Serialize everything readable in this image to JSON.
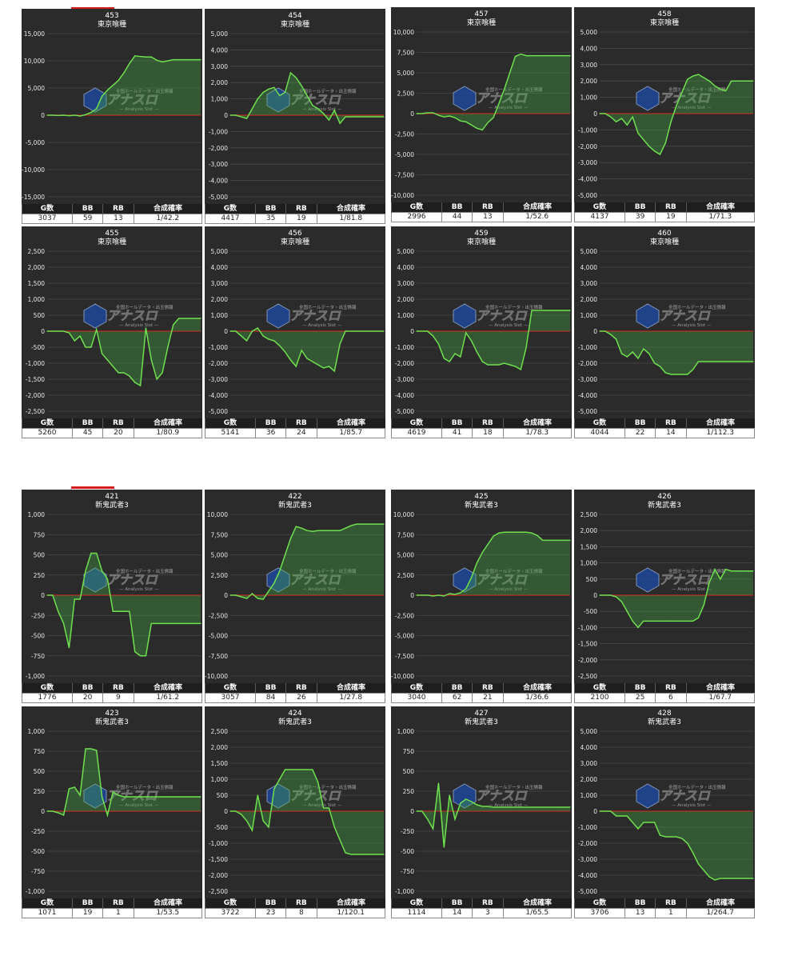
{
  "top_marks": [
    {
      "id": "mark-top"
    },
    {
      "id": "mark-mid"
    }
  ],
  "stat_headers": [
    "G数",
    "BB",
    "RB",
    "合成確率"
  ],
  "watermark": {
    "main": "アナスロ",
    "tagline": "— Analysis Slot —",
    "small": "全国ホールデータ・出玉情報"
  },
  "chart_data": [
    {
      "type": "area",
      "title": "453",
      "subtitle": "東京喰種",
      "yticks": [
        -15000,
        -10000,
        -5000,
        0,
        5000,
        10000,
        15000
      ],
      "ylim": [
        -15000,
        15000
      ],
      "values": [
        0,
        0,
        -50,
        0,
        -100,
        0,
        -150,
        100,
        500,
        1200,
        3500,
        4600,
        5500,
        6400,
        7800,
        9500,
        10900,
        10800,
        10700,
        10700,
        10100,
        9800,
        10000,
        10200,
        10200,
        10200,
        10200,
        10200,
        10200
      ],
      "stats": {
        "g": "3037",
        "bb": "59",
        "rb": "13",
        "rate": "1/42.2"
      }
    },
    {
      "type": "area",
      "title": "454",
      "subtitle": "東京喰種",
      "yticks": [
        -5000,
        -4000,
        -3000,
        -2000,
        -1000,
        0,
        1000,
        2000,
        3000,
        4000,
        5000
      ],
      "ylim": [
        -5000,
        5000
      ],
      "values": [
        0,
        0,
        -100,
        -200,
        400,
        1000,
        1400,
        1600,
        1700,
        1200,
        1400,
        2600,
        2300,
        1800,
        1200,
        600,
        400,
        100,
        -300,
        300,
        -500,
        -100,
        -100,
        -100,
        -100,
        -100,
        -100,
        -100,
        -100
      ],
      "stats": {
        "g": "4417",
        "bb": "35",
        "rb": "19",
        "rate": "1/81.8"
      }
    },
    {
      "type": "area",
      "title": "457",
      "subtitle": "東京喰種",
      "yticks": [
        -10000,
        -7500,
        -5000,
        -2500,
        0,
        2500,
        5000,
        7500,
        10000
      ],
      "ylim": [
        -10000,
        10000
      ],
      "values": [
        0,
        0,
        100,
        100,
        -200,
        -400,
        -300,
        -500,
        -900,
        -1000,
        -1400,
        -1800,
        -2000,
        -1100,
        -500,
        1200,
        3000,
        5000,
        7000,
        7300,
        7100,
        7100,
        7100,
        7100,
        7100,
        7100,
        7100,
        7100,
        7100
      ],
      "stats": {
        "g": "2996",
        "bb": "44",
        "rb": "13",
        "rate": "1/52.6"
      }
    },
    {
      "type": "area",
      "title": "458",
      "subtitle": "東京喰種",
      "yticks": [
        -5000,
        -4000,
        -3000,
        -2000,
        -1000,
        0,
        1000,
        2000,
        3000,
        4000,
        5000
      ],
      "ylim": [
        -5000,
        5000
      ],
      "values": [
        0,
        0,
        -200,
        -500,
        -300,
        -700,
        -200,
        -1200,
        -1600,
        -2000,
        -2300,
        -2500,
        -1800,
        -500,
        500,
        1300,
        2100,
        2300,
        2400,
        2200,
        2000,
        1700,
        1500,
        1400,
        2000,
        2000,
        2000,
        2000,
        2000
      ],
      "stats": {
        "g": "4137",
        "bb": "39",
        "rb": "19",
        "rate": "1/71.3"
      }
    },
    {
      "type": "area",
      "title": "455",
      "subtitle": "東京喰種",
      "yticks": [
        -2500,
        -2000,
        -1500,
        -1000,
        -500,
        0,
        500,
        1000,
        1500,
        2000,
        2500
      ],
      "ylim": [
        -2500,
        2500
      ],
      "values": [
        0,
        0,
        0,
        0,
        -50,
        -300,
        -150,
        -500,
        -500,
        50,
        -700,
        -900,
        -1100,
        -1300,
        -1300,
        -1400,
        -1600,
        -1700,
        100,
        -900,
        -1500,
        -1300,
        -500,
        200,
        400,
        400,
        400,
        400,
        400
      ],
      "stats": {
        "g": "5260",
        "bb": "45",
        "rb": "20",
        "rate": "1/80.9"
      }
    },
    {
      "type": "area",
      "title": "456",
      "subtitle": "東京喰種",
      "yticks": [
        -5000,
        -4000,
        -3000,
        -2000,
        -1000,
        0,
        1000,
        2000,
        3000,
        4000,
        5000
      ],
      "ylim": [
        -5000,
        5000
      ],
      "values": [
        0,
        0,
        -300,
        -600,
        0,
        200,
        -300,
        -500,
        -600,
        -900,
        -1300,
        -1800,
        -2200,
        -1200,
        -1700,
        -1900,
        -2100,
        -2300,
        -2200,
        -2500,
        -800,
        0,
        0,
        0,
        0,
        0,
        0,
        0,
        0
      ],
      "stats": {
        "g": "5141",
        "bb": "36",
        "rb": "24",
        "rate": "1/85.7"
      }
    },
    {
      "type": "area",
      "title": "459",
      "subtitle": "東京喰種",
      "yticks": [
        -5000,
        -4000,
        -3000,
        -2000,
        -1000,
        0,
        1000,
        2000,
        3000,
        4000,
        5000
      ],
      "ylim": [
        -5000,
        5000
      ],
      "values": [
        0,
        0,
        0,
        -300,
        -800,
        -1700,
        -1900,
        -1400,
        -1600,
        -100,
        -600,
        -1300,
        -1900,
        -2100,
        -2100,
        -2100,
        -2000,
        -2100,
        -2200,
        -2400,
        -1000,
        1300,
        1300,
        1300,
        1300,
        1300,
        1300,
        1300,
        1300
      ],
      "stats": {
        "g": "4619",
        "bb": "41",
        "rb": "18",
        "rate": "1/78.3"
      }
    },
    {
      "type": "area",
      "title": "460",
      "subtitle": "東京喰種",
      "yticks": [
        -5000,
        -4000,
        -3000,
        -2000,
        -1000,
        0,
        1000,
        2000,
        3000,
        4000,
        5000
      ],
      "ylim": [
        -5000,
        5000
      ],
      "values": [
        0,
        0,
        -200,
        -500,
        -1400,
        -1600,
        -1300,
        -1700,
        -1100,
        -1400,
        -2000,
        -2200,
        -2600,
        -2700,
        -2700,
        -2700,
        -2700,
        -2400,
        -1900,
        -1900,
        -1900,
        -1900,
        -1900,
        -1900,
        -1900,
        -1900,
        -1900,
        -1900,
        -1900
      ],
      "stats": {
        "g": "4044",
        "bb": "22",
        "rb": "14",
        "rate": "1/112.3"
      }
    },
    {
      "type": "area",
      "title": "421",
      "subtitle": "新鬼武者3",
      "yticks": [
        -1000,
        -750,
        -500,
        -250,
        0,
        250,
        500,
        750,
        1000
      ],
      "ylim": [
        -1000,
        1000
      ],
      "values": [
        0,
        0,
        -200,
        -350,
        -650,
        -50,
        -50,
        300,
        520,
        520,
        300,
        200,
        -200,
        -200,
        -200,
        -200,
        -700,
        -750,
        -750,
        -350,
        -350,
        -350,
        -350,
        -350,
        -350,
        -350,
        -350,
        -350,
        -350
      ],
      "stats": {
        "g": "1776",
        "bb": "20",
        "rb": "9",
        "rate": "1/61.2"
      }
    },
    {
      "type": "area",
      "title": "422",
      "subtitle": "新鬼武者3",
      "yticks": [
        -10000,
        -7500,
        -5000,
        -2500,
        0,
        2500,
        5000,
        7500,
        10000
      ],
      "ylim": [
        -10000,
        10000
      ],
      "values": [
        0,
        0,
        -200,
        -400,
        200,
        -400,
        -500,
        500,
        1500,
        3000,
        5000,
        7000,
        8500,
        8300,
        8000,
        7900,
        8000,
        8000,
        8000,
        8000,
        8000,
        8300,
        8600,
        8800,
        8800,
        8800,
        8800,
        8800,
        8800
      ],
      "stats": {
        "g": "3057",
        "bb": "84",
        "rb": "26",
        "rate": "1/27.8"
      }
    },
    {
      "type": "area",
      "title": "425",
      "subtitle": "新鬼武者3",
      "yticks": [
        -10000,
        -7500,
        -5000,
        -2500,
        0,
        2500,
        5000,
        7500,
        10000
      ],
      "ylim": [
        -10000,
        10000
      ],
      "values": [
        0,
        0,
        0,
        -100,
        0,
        -100,
        200,
        100,
        300,
        800,
        2200,
        4000,
        5300,
        6300,
        7300,
        7700,
        7800,
        7800,
        7800,
        7800,
        7800,
        7700,
        7400,
        6800,
        6800,
        6800,
        6800,
        6800,
        6800
      ],
      "stats": {
        "g": "3040",
        "bb": "62",
        "rb": "21",
        "rate": "1/36.6"
      }
    },
    {
      "type": "area",
      "title": "426",
      "subtitle": "新鬼武者3",
      "yticks": [
        -2500,
        -2000,
        -1500,
        -1000,
        -500,
        0,
        500,
        1000,
        1500,
        2000,
        2500
      ],
      "ylim": [
        -2500,
        2500
      ],
      "values": [
        0,
        0,
        0,
        -50,
        -200,
        -500,
        -800,
        -1000,
        -800,
        -800,
        -800,
        -800,
        -800,
        -800,
        -800,
        -800,
        -800,
        -800,
        -700,
        -300,
        400,
        800,
        500,
        800,
        750,
        750,
        750,
        750,
        750
      ],
      "stats": {
        "g": "2100",
        "bb": "25",
        "rb": "6",
        "rate": "1/67.7"
      }
    },
    {
      "type": "area",
      "title": "423",
      "subtitle": "新鬼武者3",
      "yticks": [
        -1000,
        -750,
        -500,
        -250,
        0,
        250,
        500,
        750,
        1000
      ],
      "ylim": [
        -1000,
        1000
      ],
      "values": [
        0,
        0,
        -20,
        -50,
        280,
        300,
        200,
        780,
        780,
        760,
        180,
        -50,
        240,
        200,
        180,
        180,
        180,
        180,
        180,
        180,
        180,
        180,
        180,
        180,
        180,
        180,
        180,
        180,
        180
      ],
      "stats": {
        "g": "1071",
        "bb": "19",
        "rb": "1",
        "rate": "1/53.5"
      }
    },
    {
      "type": "area",
      "title": "424",
      "subtitle": "新鬼武者3",
      "yticks": [
        -2500,
        -2000,
        -1500,
        -1000,
        -500,
        0,
        500,
        1000,
        1500,
        2000,
        2500
      ],
      "ylim": [
        -2500,
        2500
      ],
      "values": [
        0,
        0,
        -100,
        -300,
        -600,
        500,
        -300,
        -500,
        700,
        1000,
        1300,
        1300,
        1300,
        1300,
        1300,
        1300,
        900,
        100,
        100,
        -500,
        -900,
        -1300,
        -1350,
        -1350,
        -1350,
        -1350,
        -1350,
        -1350,
        -1350
      ],
      "stats": {
        "g": "3722",
        "bb": "23",
        "rb": "8",
        "rate": "1/120.1"
      }
    },
    {
      "type": "area",
      "title": "427",
      "subtitle": "新鬼武者3",
      "yticks": [
        -1000,
        -750,
        -500,
        -250,
        0,
        250,
        500,
        750,
        1000
      ],
      "ylim": [
        -1000,
        1000
      ],
      "values": [
        0,
        0,
        -100,
        -220,
        350,
        -450,
        200,
        -100,
        100,
        150,
        120,
        80,
        60,
        60,
        50,
        50,
        50,
        50,
        50,
        50,
        50,
        50,
        50,
        50,
        50,
        50,
        50,
        50,
        50
      ],
      "stats": {
        "g": "1114",
        "bb": "14",
        "rb": "3",
        "rate": "1/65.5"
      }
    },
    {
      "type": "area",
      "title": "428",
      "subtitle": "新鬼武者3",
      "yticks": [
        -5000,
        -4000,
        -3000,
        -2000,
        -1000,
        0,
        1000,
        2000,
        3000,
        4000,
        5000
      ],
      "ylim": [
        -5000,
        5000
      ],
      "values": [
        0,
        0,
        0,
        -300,
        -300,
        -300,
        -700,
        -1100,
        -700,
        -700,
        -700,
        -1500,
        -1600,
        -1600,
        -1600,
        -1700,
        -2000,
        -2600,
        -3300,
        -3700,
        -4100,
        -4300,
        -4200,
        -4200,
        -4200,
        -4200,
        -4200,
        -4200,
        -4200
      ],
      "stats": {
        "g": "3706",
        "bb": "13",
        "rb": "1",
        "rate": "1/264.7"
      }
    }
  ]
}
